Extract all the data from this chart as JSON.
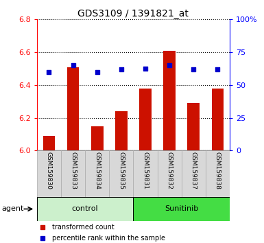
{
  "title": "GDS3109 / 1391821_at",
  "samples": [
    "GSM159830",
    "GSM159833",
    "GSM159834",
    "GSM159835",
    "GSM159831",
    "GSM159832",
    "GSM159837",
    "GSM159838"
  ],
  "red_values": [
    6.09,
    6.51,
    6.15,
    6.24,
    6.38,
    6.61,
    6.29,
    6.38
  ],
  "blue_percentiles": [
    60,
    65,
    60,
    62,
    62.5,
    65,
    62,
    62
  ],
  "ylim_left": [
    6.0,
    6.8
  ],
  "ylim_right": [
    0,
    100
  ],
  "yticks_left": [
    6.0,
    6.2,
    6.4,
    6.6,
    6.8
  ],
  "yticks_right": [
    0,
    25,
    50,
    75,
    100
  ],
  "ytick_labels_right": [
    "0",
    "25",
    "50",
    "75",
    "100%"
  ],
  "groups": [
    {
      "label": "control",
      "start": 0,
      "end": 4,
      "color": "#ccf0cc"
    },
    {
      "label": "Sunitinib",
      "start": 4,
      "end": 8,
      "color": "#44dd44"
    }
  ],
  "bar_color": "#cc1100",
  "dot_color": "#0000cc",
  "plot_bg": "#ffffff",
  "bar_width": 0.5,
  "base_value": 6.0,
  "legend_items": [
    {
      "color": "#cc1100",
      "label": "transformed count"
    },
    {
      "color": "#0000cc",
      "label": "percentile rank within the sample"
    }
  ],
  "agent_label": "agent"
}
